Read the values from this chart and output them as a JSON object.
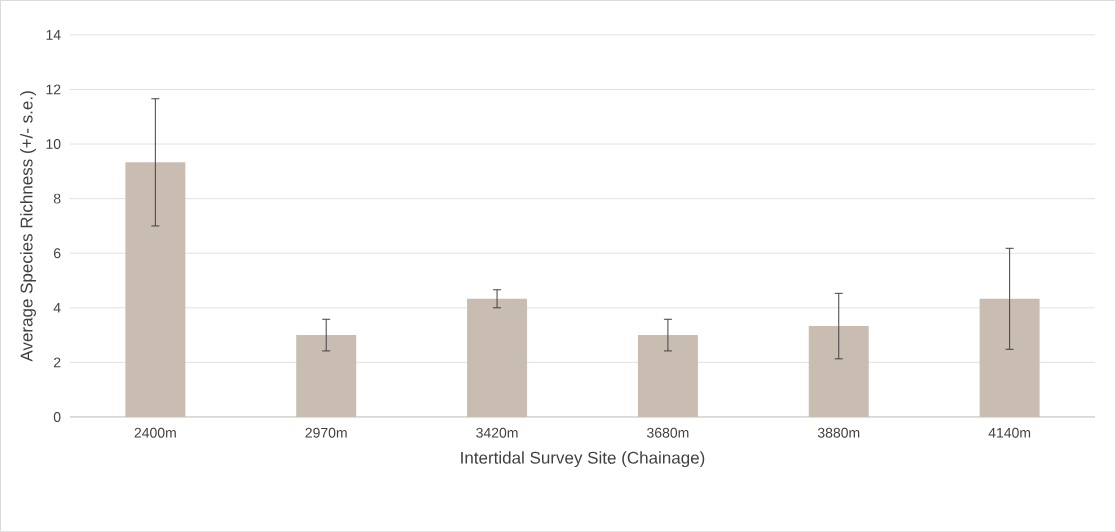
{
  "chart_data": {
    "type": "bar",
    "xlabel": "Intertidal Survey Site (Chainage)",
    "ylabel": "Average Species Richness (+/- s.e.)",
    "categories": [
      "2400m",
      "2970m",
      "3420m",
      "3680m",
      "3880m",
      "4140m"
    ],
    "values": [
      9.33,
      3.0,
      4.33,
      3.0,
      3.33,
      4.33
    ],
    "errors": [
      2.33,
      0.58,
      0.33,
      0.58,
      1.2,
      1.85
    ],
    "color": "#c9bdb1",
    "ylim": [
      0,
      14
    ],
    "yticks": [
      0,
      2,
      4,
      6,
      8,
      10,
      12,
      14
    ],
    "grid": "y"
  }
}
